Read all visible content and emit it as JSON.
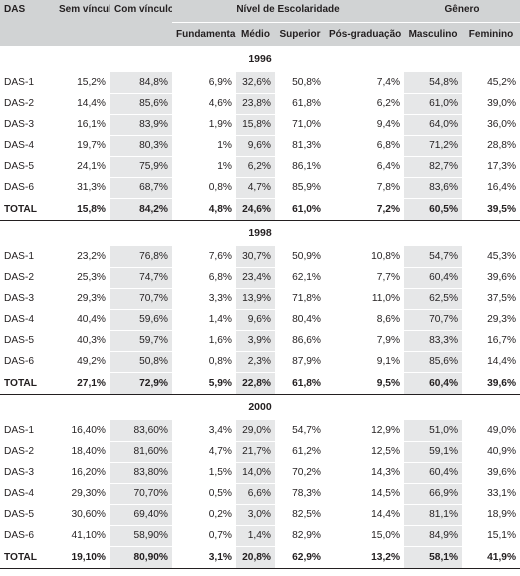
{
  "header": {
    "das": "DAS",
    "sem_vinculo": "Sem vínculo",
    "com_vinculo": "Com vínculo",
    "escolaridade": "Nível de Escolaridade",
    "genero": "Gênero",
    "fundamental": "Fundamental",
    "medio": "Médio",
    "superior": "Superior",
    "pos": "Pós-graduação",
    "masculino": "Masculino",
    "feminino": "Feminino"
  },
  "sections": [
    {
      "year": "1996",
      "rows": [
        {
          "label": "DAS-1",
          "cells": [
            "15,2%",
            "84,8%",
            "6,9%",
            "32,6%",
            "50,8%",
            "7,4%",
            "54,8%",
            "45,2%"
          ]
        },
        {
          "label": "DAS-2",
          "cells": [
            "14,4%",
            "85,6%",
            "4,6%",
            "23,8%",
            "61,8%",
            "6,2%",
            "61,0%",
            "39,0%"
          ]
        },
        {
          "label": "DAS-3",
          "cells": [
            "16,1%",
            "83,9%",
            "1,9%",
            "15,8%",
            "71,0%",
            "9,4%",
            "64,0%",
            "36,0%"
          ]
        },
        {
          "label": "DAS-4",
          "cells": [
            "19,7%",
            "80,3%",
            "1%",
            "9,6%",
            "81,3%",
            "6,8%",
            "71,2%",
            "28,8%"
          ]
        },
        {
          "label": "DAS-5",
          "cells": [
            "24,1%",
            "75,9%",
            "1%",
            "6,2%",
            "86,1%",
            "6,4%",
            "82,7%",
            "17,3%"
          ]
        },
        {
          "label": "DAS-6",
          "cells": [
            "31,3%",
            "68,7%",
            "0,8%",
            "4,7%",
            "85,9%",
            "7,8%",
            "83,6%",
            "16,4%"
          ]
        },
        {
          "label": "TOTAL",
          "cells": [
            "15,8%",
            "84,2%",
            "4,8%",
            "24,6%",
            "61,0%",
            "7,2%",
            "60,5%",
            "39,5%"
          ]
        }
      ]
    },
    {
      "year": "1998",
      "rows": [
        {
          "label": "DAS-1",
          "cells": [
            "23,2%",
            "76,8%",
            "7,6%",
            "30,7%",
            "50,9%",
            "10,8%",
            "54,7%",
            "45,3%"
          ]
        },
        {
          "label": "DAS-2",
          "cells": [
            "25,3%",
            "74,7%",
            "6,8%",
            "23,4%",
            "62,1%",
            "7,7%",
            "60,4%",
            "39,6%"
          ]
        },
        {
          "label": "DAS-3",
          "cells": [
            "29,3%",
            "70,7%",
            "3,3%",
            "13,9%",
            "71,8%",
            "11,0%",
            "62,5%",
            "37,5%"
          ]
        },
        {
          "label": "DAS-4",
          "cells": [
            "40,4%",
            "59,6%",
            "1,4%",
            "9,6%",
            "80,4%",
            "8,6%",
            "70,7%",
            "29,3%"
          ]
        },
        {
          "label": "DAS-5",
          "cells": [
            "40,3%",
            "59,7%",
            "1,6%",
            "3,9%",
            "86,6%",
            "7,9%",
            "83,3%",
            "16,7%"
          ]
        },
        {
          "label": "DAS-6",
          "cells": [
            "49,2%",
            "50,8%",
            "0,8%",
            "2,3%",
            "87,9%",
            "9,1%",
            "85,6%",
            "14,4%"
          ]
        },
        {
          "label": "TOTAL",
          "cells": [
            "27,1%",
            "72,9%",
            "5,9%",
            "22,8%",
            "61,8%",
            "9,5%",
            "60,4%",
            "39,6%"
          ]
        }
      ]
    },
    {
      "year": "2000",
      "rows": [
        {
          "label": "DAS-1",
          "cells": [
            "16,40%",
            "83,60%",
            "3,4%",
            "29,0%",
            "54,7%",
            "12,9%",
            "51,0%",
            "49,0%"
          ]
        },
        {
          "label": "DAS-2",
          "cells": [
            "18,40%",
            "81,60%",
            "4,7%",
            "21,7%",
            "61,2%",
            "12,5%",
            "59,1%",
            "40,9%"
          ]
        },
        {
          "label": "DAS-3",
          "cells": [
            "16,20%",
            "83,80%",
            "1,5%",
            "14,0%",
            "70,2%",
            "14,3%",
            "60,4%",
            "39,6%"
          ]
        },
        {
          "label": "DAS-4",
          "cells": [
            "29,30%",
            "70,70%",
            "0,5%",
            "6,6%",
            "78,3%",
            "14,5%",
            "66,9%",
            "33,1%"
          ]
        },
        {
          "label": "DAS-5",
          "cells": [
            "30,60%",
            "69,40%",
            "0,2%",
            "3,0%",
            "82,5%",
            "14,4%",
            "81,1%",
            "18,9%"
          ]
        },
        {
          "label": "DAS-6",
          "cells": [
            "41,10%",
            "58,90%",
            "0,7%",
            "1,4%",
            "82,9%",
            "15,0%",
            "84,9%",
            "15,1%"
          ]
        },
        {
          "label": "TOTAL",
          "cells": [
            "19,10%",
            "80,90%",
            "3,1%",
            "20,8%",
            "62,9%",
            "13,2%",
            "58,1%",
            "41,9%"
          ]
        }
      ]
    }
  ],
  "shaded_columns": [
    false,
    true,
    false,
    true,
    false,
    false,
    true,
    false
  ]
}
